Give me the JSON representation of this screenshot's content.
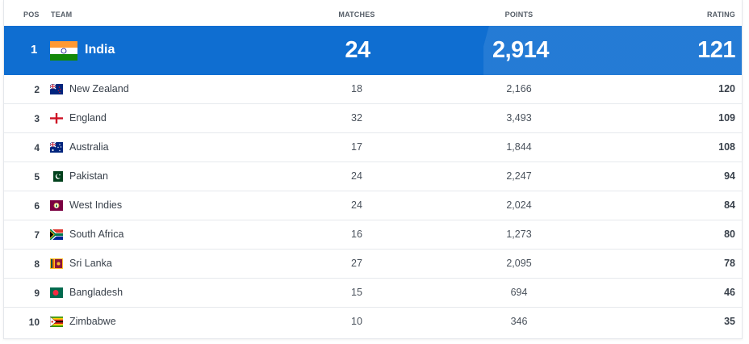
{
  "headers": {
    "pos": "POS",
    "team": "TEAM",
    "matches": "MATCHES",
    "points": "POINTS",
    "rating": "RATING"
  },
  "top": {
    "pos": "1",
    "team": "India",
    "flag": "india-flag-icon",
    "matches": "24",
    "points": "2,914",
    "rating": "121"
  },
  "rows": [
    {
      "pos": "2",
      "team": "New Zealand",
      "flag": "new-zealand-flag-icon",
      "matches": "18",
      "points": "2,166",
      "rating": "120"
    },
    {
      "pos": "3",
      "team": "England",
      "flag": "england-flag-icon",
      "matches": "32",
      "points": "3,493",
      "rating": "109"
    },
    {
      "pos": "4",
      "team": "Australia",
      "flag": "australia-flag-icon",
      "matches": "17",
      "points": "1,844",
      "rating": "108"
    },
    {
      "pos": "5",
      "team": "Pakistan",
      "flag": "pakistan-flag-icon",
      "matches": "24",
      "points": "2,247",
      "rating": "94"
    },
    {
      "pos": "6",
      "team": "West Indies",
      "flag": "west-indies-flag-icon",
      "matches": "24",
      "points": "2,024",
      "rating": "84"
    },
    {
      "pos": "7",
      "team": "South Africa",
      "flag": "south-africa-flag-icon",
      "matches": "16",
      "points": "1,273",
      "rating": "80"
    },
    {
      "pos": "8",
      "team": "Sri Lanka",
      "flag": "sri-lanka-flag-icon",
      "matches": "27",
      "points": "2,095",
      "rating": "78"
    },
    {
      "pos": "9",
      "team": "Bangladesh",
      "flag": "bangladesh-flag-icon",
      "matches": "15",
      "points": "694",
      "rating": "46"
    },
    {
      "pos": "10",
      "team": "Zimbabwe",
      "flag": "zimbabwe-flag-icon",
      "matches": "10",
      "points": "346",
      "rating": "35"
    }
  ],
  "colors": {
    "accent": "#0f6ed1",
    "text": "#39414b",
    "divider": "#e6e9ed"
  }
}
